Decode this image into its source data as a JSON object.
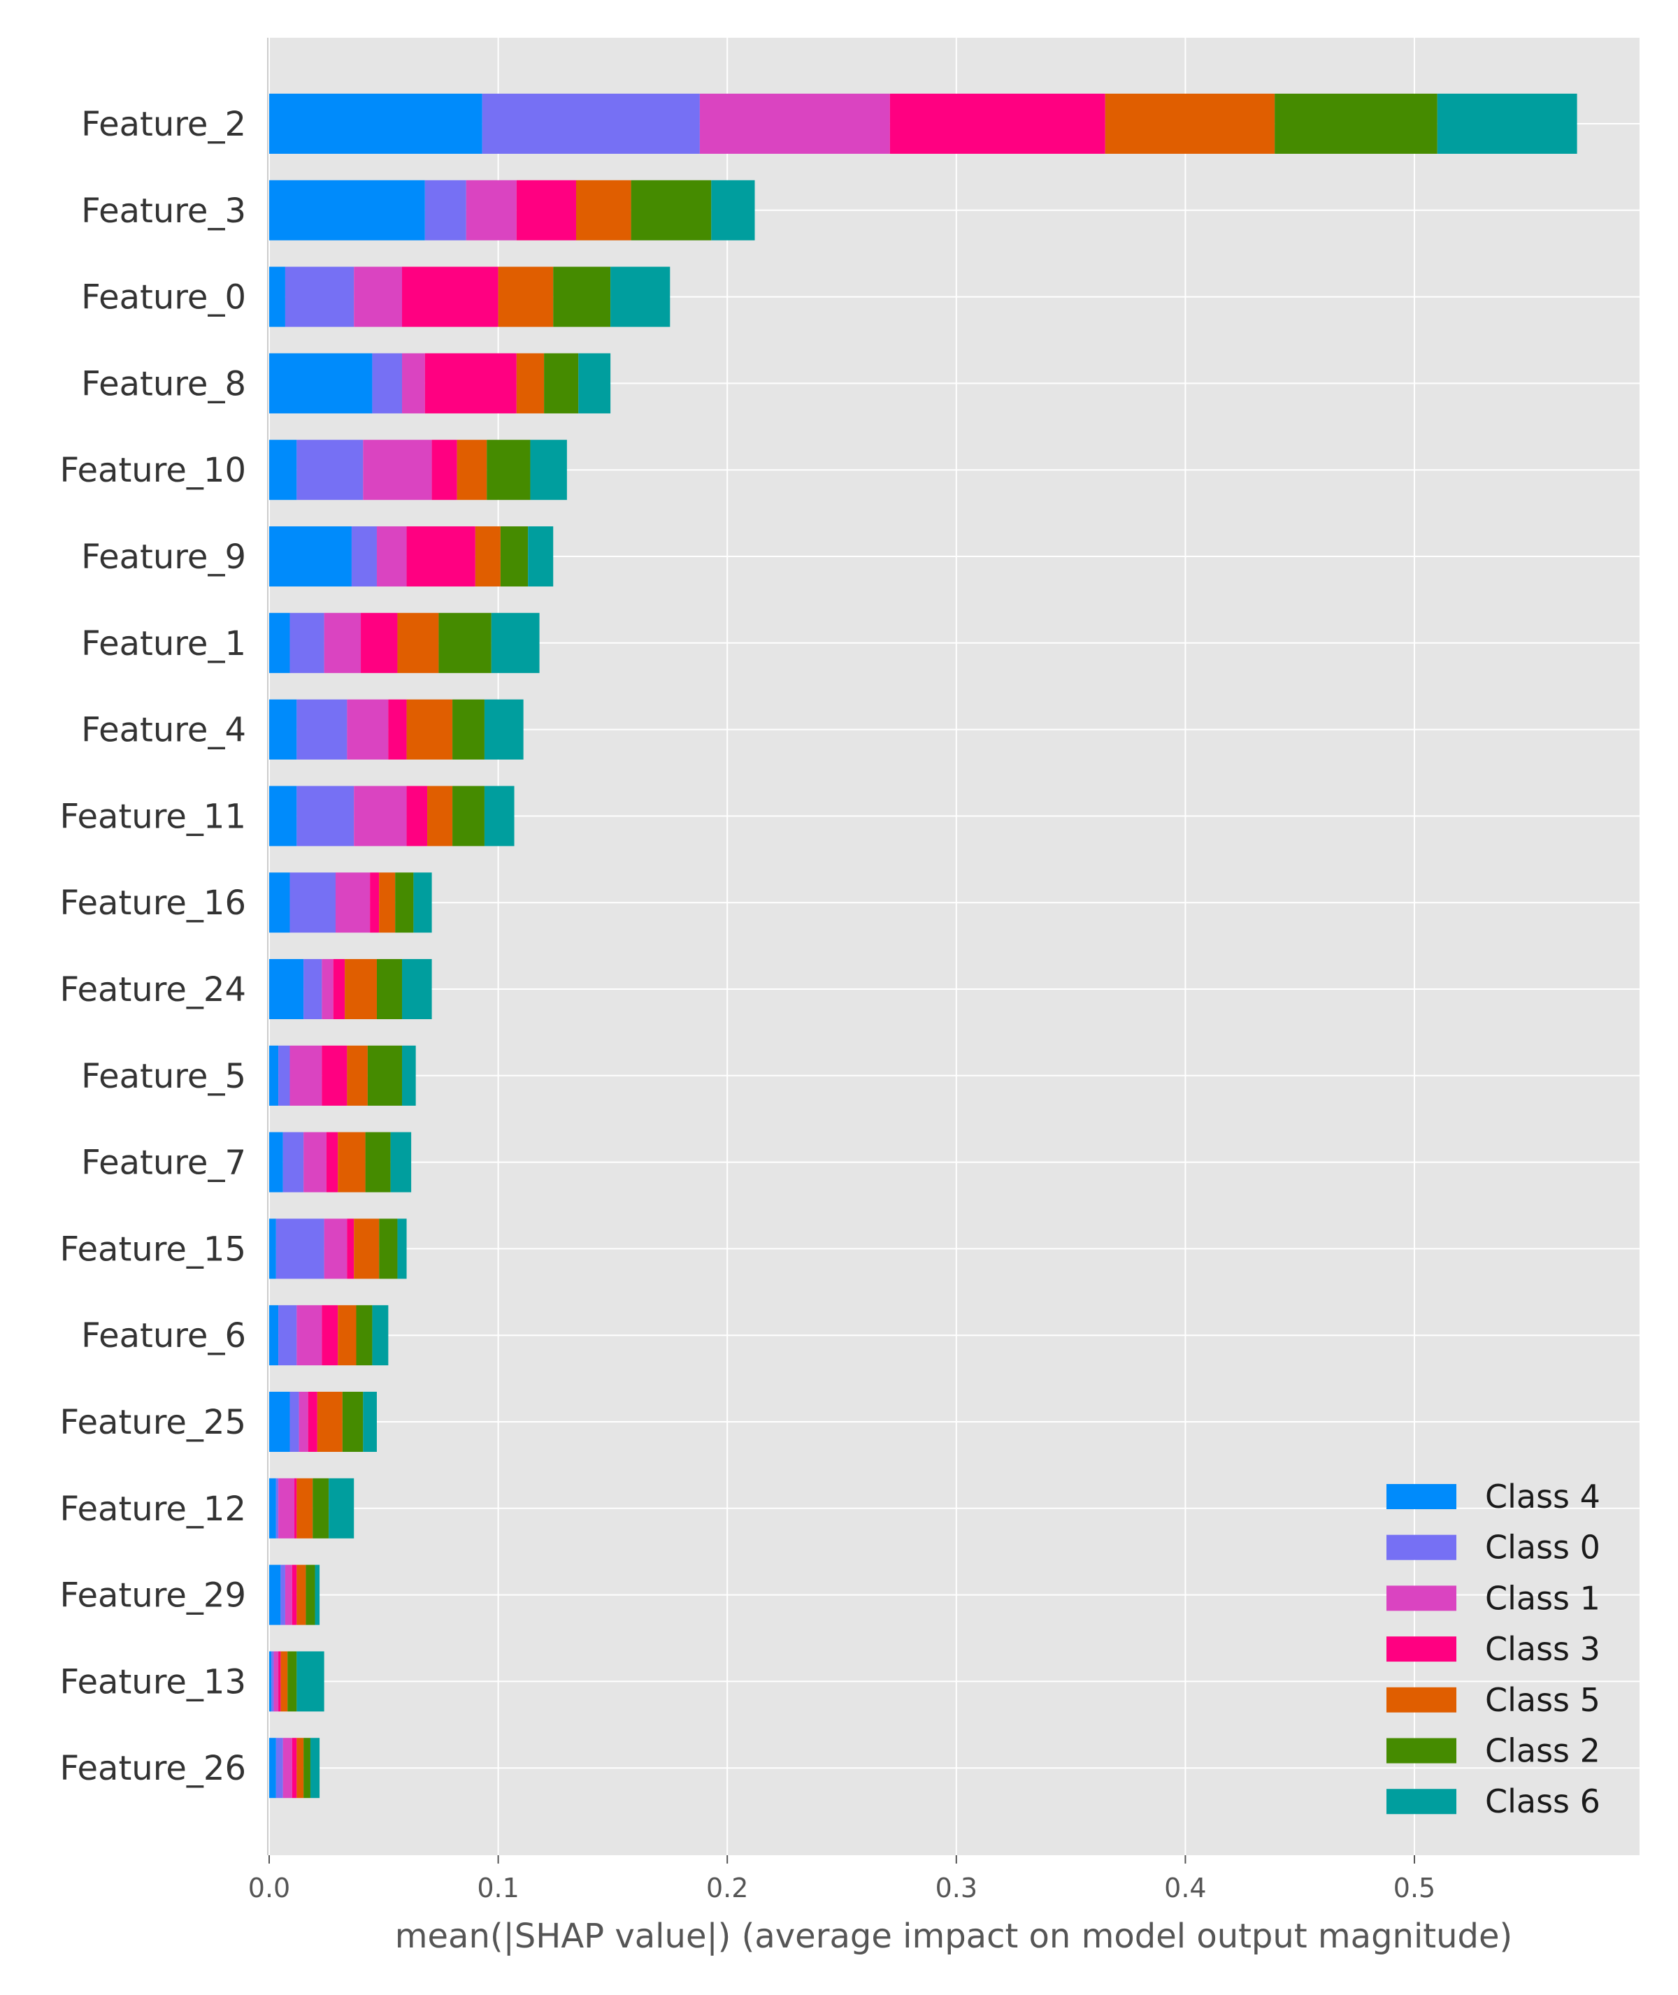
{
  "chart_data": {
    "type": "bar",
    "orientation": "horizontal",
    "stacked": true,
    "xlabel": "mean(|SHAP value|) (average impact on model output magnitude)",
    "ylabel": "",
    "xlim": [
      0,
      0.6
    ],
    "xticks": [
      "0.0",
      "0.1",
      "0.2",
      "0.3",
      "0.4",
      "0.5"
    ],
    "grid": true,
    "legend_position": "bottom-right",
    "categories": [
      "Feature_2",
      "Feature_3",
      "Feature_0",
      "Feature_8",
      "Feature_10",
      "Feature_9",
      "Feature_1",
      "Feature_4",
      "Feature_11",
      "Feature_16",
      "Feature_24",
      "Feature_5",
      "Feature_7",
      "Feature_15",
      "Feature_6",
      "Feature_25",
      "Feature_12",
      "Feature_29",
      "Feature_13",
      "Feature_26"
    ],
    "series": [
      {
        "name": "Class 4",
        "color": "#008bfb",
        "values": [
          0.093,
          0.068,
          0.007,
          0.045,
          0.012,
          0.036,
          0.009,
          0.012,
          0.012,
          0.009,
          0.015,
          0.004,
          0.006,
          0.003,
          0.004,
          0.009,
          0.003,
          0.005,
          0.001,
          0.003
        ]
      },
      {
        "name": "Class 0",
        "color": "#7670f4",
        "values": [
          0.095,
          0.018,
          0.03,
          0.013,
          0.029,
          0.011,
          0.015,
          0.022,
          0.025,
          0.02,
          0.008,
          0.005,
          0.009,
          0.021,
          0.008,
          0.004,
          0.001,
          0.002,
          0.001,
          0.003
        ]
      },
      {
        "name": "Class 1",
        "color": "#da44c1",
        "values": [
          0.083,
          0.022,
          0.021,
          0.01,
          0.03,
          0.013,
          0.016,
          0.018,
          0.023,
          0.015,
          0.005,
          0.014,
          0.01,
          0.01,
          0.011,
          0.004,
          0.007,
          0.003,
          0.002,
          0.004
        ]
      },
      {
        "name": "Class 3",
        "color": "#ff0081",
        "values": [
          0.094,
          0.026,
          0.042,
          0.04,
          0.011,
          0.03,
          0.016,
          0.008,
          0.009,
          0.004,
          0.005,
          0.011,
          0.005,
          0.003,
          0.007,
          0.004,
          0.001,
          0.002,
          0.001,
          0.002
        ]
      },
      {
        "name": "Class 5",
        "color": "#e05e00",
        "values": [
          0.074,
          0.024,
          0.024,
          0.012,
          0.013,
          0.011,
          0.018,
          0.02,
          0.011,
          0.007,
          0.014,
          0.009,
          0.012,
          0.011,
          0.008,
          0.011,
          0.007,
          0.004,
          0.003,
          0.003
        ]
      },
      {
        "name": "Class 2",
        "color": "#458b00",
        "values": [
          0.071,
          0.035,
          0.025,
          0.015,
          0.019,
          0.012,
          0.023,
          0.014,
          0.014,
          0.008,
          0.011,
          0.015,
          0.011,
          0.008,
          0.007,
          0.009,
          0.007,
          0.004,
          0.004,
          0.003
        ]
      },
      {
        "name": "Class 6",
        "color": "#009e9e",
        "values": [
          0.061,
          0.019,
          0.026,
          0.014,
          0.016,
          0.011,
          0.021,
          0.017,
          0.013,
          0.008,
          0.013,
          0.006,
          0.009,
          0.004,
          0.007,
          0.006,
          0.011,
          0.002,
          0.012,
          0.004
        ]
      }
    ],
    "colors": {
      "panel_background": "#e5e5e5",
      "grid": "#ffffff",
      "text": "#333333",
      "axis_label": "#555555"
    }
  }
}
